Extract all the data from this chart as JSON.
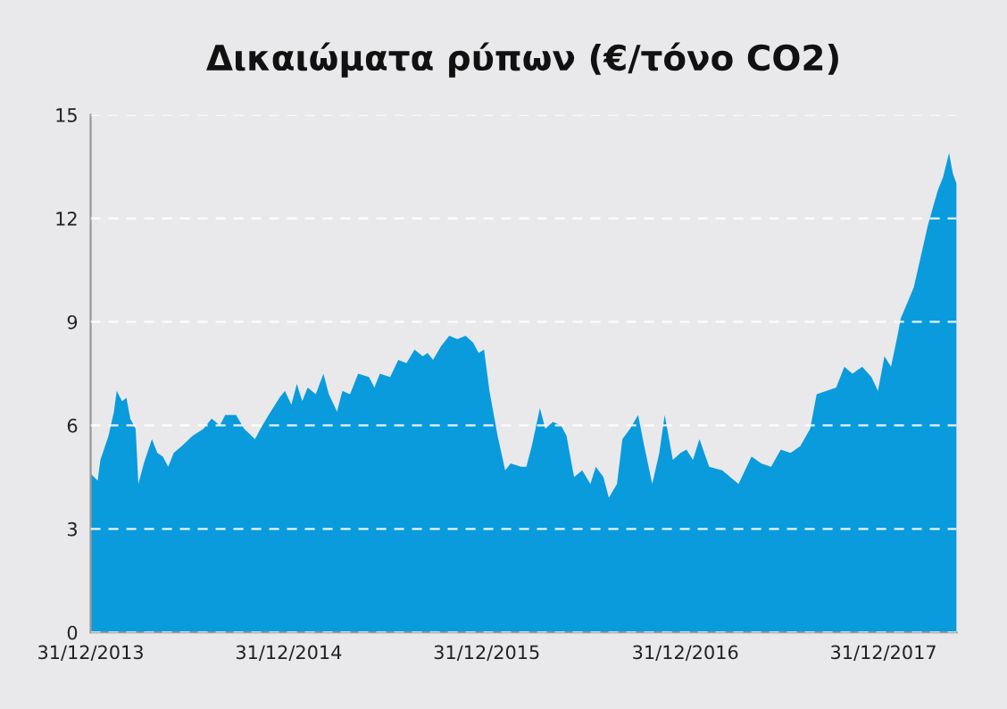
{
  "chart_data": {
    "type": "area",
    "title": "Δικαιώματα ρύπων (€/τόνο CO2)",
    "color": "#0a9bdc",
    "grid": "y",
    "line_style": "dashed",
    "x": [
      "2013-12-31",
      "2014-01-13",
      "2014-01-18",
      "2014-02-02",
      "2014-02-12",
      "2014-02-17",
      "2014-02-27",
      "2014-03-07",
      "2014-03-14",
      "2014-03-24",
      "2014-03-29",
      "2014-04-08",
      "2014-04-23",
      "2014-05-03",
      "2014-05-13",
      "2014-05-23",
      "2014-06-02",
      "2014-06-17",
      "2014-07-07",
      "2014-07-27",
      "2014-08-11",
      "2014-08-26",
      "2014-09-05",
      "2014-09-25",
      "2014-10-10",
      "2014-10-30",
      "2014-11-09",
      "2014-11-24",
      "2014-12-14",
      "2014-12-24",
      "2015-01-05",
      "2015-01-15",
      "2015-01-25",
      "2015-02-04",
      "2015-02-19",
      "2015-03-05",
      "2015-03-15",
      "2015-03-30",
      "2015-04-09",
      "2015-04-23",
      "2015-05-08",
      "2015-05-28",
      "2015-06-07",
      "2015-06-17",
      "2015-07-06",
      "2015-07-21",
      "2015-08-05",
      "2015-08-20",
      "2015-09-04",
      "2015-09-13",
      "2015-09-23",
      "2015-10-08",
      "2015-10-23",
      "2015-11-07",
      "2015-11-22",
      "2015-12-06",
      "2015-12-16",
      "2015-12-26",
      "2016-01-05",
      "2016-01-20",
      "2016-02-03",
      "2016-02-13",
      "2016-03-04",
      "2016-03-13",
      "2016-03-23",
      "2016-04-07",
      "2016-04-17",
      "2016-05-01",
      "2016-05-16",
      "2016-05-26",
      "2016-06-09",
      "2016-06-24",
      "2016-07-09",
      "2016-07-19",
      "2016-08-02",
      "2016-08-12",
      "2016-08-27",
      "2016-09-06",
      "2016-09-20",
      "2016-10-05",
      "2016-10-15",
      "2016-10-31",
      "2016-11-13",
      "2016-11-23",
      "2016-12-08",
      "2016-12-22",
      "2017-01-02",
      "2017-01-14",
      "2017-01-26",
      "2017-02-13",
      "2017-03-09",
      "2017-04-08",
      "2017-05-02",
      "2017-05-20",
      "2017-06-07",
      "2017-06-25",
      "2017-07-13",
      "2017-07-31",
      "2017-08-18",
      "2017-08-30",
      "2017-09-17",
      "2017-10-05",
      "2017-10-20",
      "2017-11-04",
      "2017-11-22",
      "2017-12-09",
      "2017-12-21",
      "2018-01-02",
      "2018-01-14",
      "2018-01-26",
      "2018-02-01",
      "2018-02-25",
      "2018-03-23",
      "2018-04-10",
      "2018-04-20",
      "2018-05-01",
      "2018-05-08",
      "2018-05-15"
    ],
    "values": [
      4.6,
      4.4,
      5.0,
      5.7,
      6.4,
      7.0,
      6.7,
      6.8,
      6.2,
      5.9,
      4.3,
      4.9,
      5.6,
      5.2,
      5.1,
      4.8,
      5.2,
      5.4,
      5.7,
      5.9,
      6.2,
      6.0,
      6.3,
      6.3,
      5.9,
      5.6,
      5.9,
      6.3,
      6.8,
      7.0,
      6.6,
      7.2,
      6.7,
      7.1,
      6.9,
      7.5,
      6.9,
      6.4,
      7.0,
      6.9,
      7.5,
      7.4,
      7.1,
      7.5,
      7.4,
      7.9,
      7.8,
      8.2,
      8.0,
      8.1,
      7.9,
      8.3,
      8.6,
      8.5,
      8.6,
      8.4,
      8.1,
      8.2,
      7.0,
      5.7,
      4.7,
      4.9,
      4.8,
      4.8,
      5.4,
      6.5,
      5.9,
      6.1,
      6.0,
      5.7,
      4.5,
      4.7,
      4.3,
      4.8,
      4.5,
      3.9,
      4.3,
      5.6,
      5.9,
      6.3,
      5.5,
      4.3,
      5.2,
      6.3,
      5.0,
      5.2,
      5.3,
      5.0,
      5.6,
      4.8,
      4.7,
      4.3,
      5.1,
      4.9,
      4.8,
      5.3,
      5.2,
      5.4,
      5.9,
      6.9,
      7.0,
      7.1,
      7.7,
      7.5,
      7.7,
      7.4,
      7.0,
      8.0,
      7.7,
      8.6,
      9.1,
      10.0,
      11.8,
      12.8,
      13.2,
      13.9,
      13.3,
      13.0
    ],
    "xlim": [
      "2013-12-31",
      "2018-05-15"
    ],
    "xticks": [
      {
        "value": "2013-12-31",
        "label": "31/12/2013"
      },
      {
        "value": "2014-12-31",
        "label": "31/12/2014"
      },
      {
        "value": "2015-12-31",
        "label": "31/12/2015"
      },
      {
        "value": "2016-12-31",
        "label": "31/12/2016"
      },
      {
        "value": "2017-12-31",
        "label": "31/12/2017"
      }
    ],
    "ylim": [
      0,
      15
    ],
    "yticks": [
      0,
      3,
      6,
      9,
      12,
      15
    ]
  }
}
